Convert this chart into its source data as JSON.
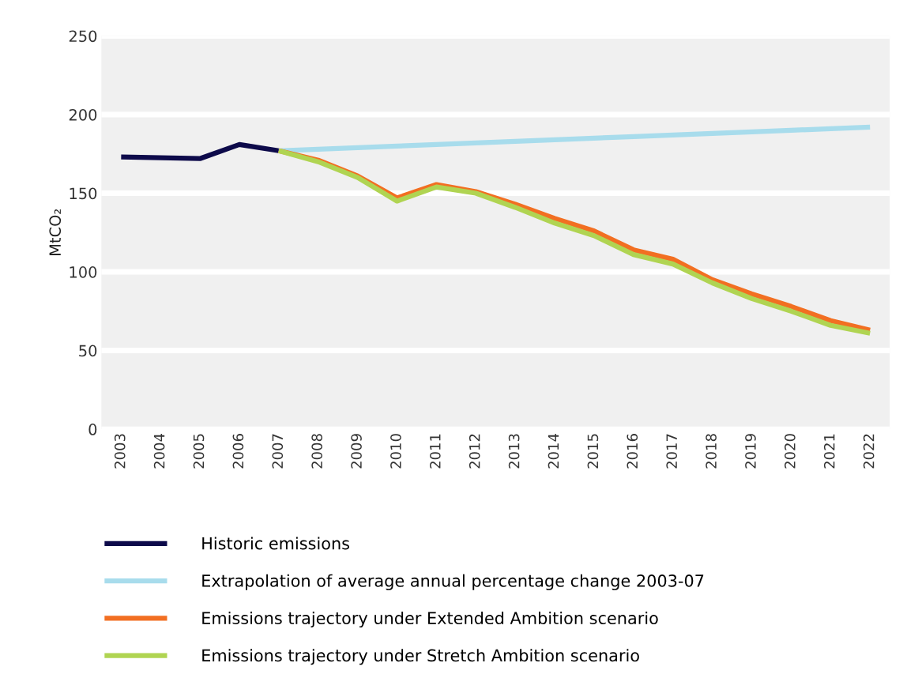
{
  "chart_data": {
    "type": "line",
    "ylabel": "MtCO₂",
    "categories": [
      "2003",
      "2004",
      "2005",
      "2006",
      "2007",
      "2008",
      "2009",
      "2010",
      "2011",
      "2012",
      "2013",
      "2014",
      "2015",
      "2016",
      "2017",
      "2018",
      "2019",
      "2020",
      "2021",
      "2022"
    ],
    "series": [
      {
        "name": "Historic emissions",
        "color": "#0d0a4a",
        "values": [
          173,
          172.5,
          172,
          181,
          177,
          null,
          null,
          null,
          null,
          null,
          null,
          null,
          null,
          null,
          null,
          null,
          null,
          null,
          null,
          null
        ]
      },
      {
        "name": "Extrapolation of average annual percentage change 2003-07",
        "color": "#a8dcec",
        "values": [
          null,
          null,
          null,
          null,
          177,
          178,
          179,
          180,
          181,
          182,
          183,
          184,
          185,
          186,
          187,
          188,
          189,
          190,
          191,
          192
        ]
      },
      {
        "name": "Emissions trajectory under Extended Ambition scenario",
        "color": "#f26f22",
        "values": [
          null,
          null,
          null,
          null,
          177,
          171,
          161,
          147,
          155.5,
          151,
          143,
          134,
          126,
          114,
          108,
          95,
          86,
          78,
          69,
          63
        ]
      },
      {
        "name": "Emissions trajectory under Stretch Ambition scenario",
        "color": "#b0d452",
        "values": [
          null,
          null,
          null,
          null,
          177,
          170,
          160,
          145,
          154,
          150,
          141,
          131,
          123,
          111,
          105,
          93,
          83,
          75,
          66,
          61
        ]
      }
    ],
    "ylim": [
      0,
      250
    ],
    "yticks": [
      0,
      50,
      100,
      150,
      200,
      250
    ],
    "grid": "y",
    "legend": "bottom",
    "line_style": "solid",
    "marker": "none"
  }
}
